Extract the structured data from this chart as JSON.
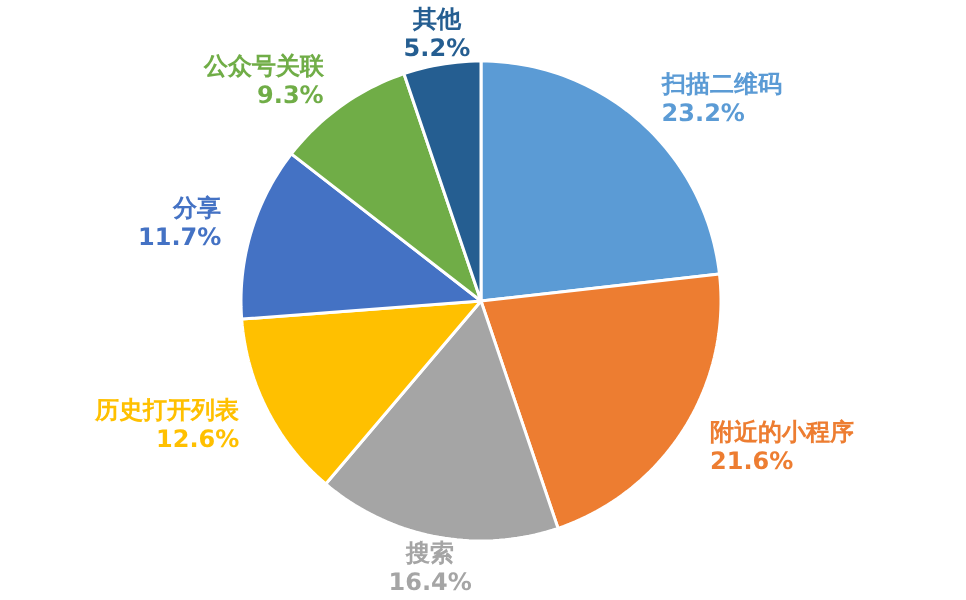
{
  "chart_data": {
    "type": "pie",
    "categories": [
      "扫描二维码",
      "附近的小程序",
      "搜索",
      "历史打开列表",
      "分享",
      "公众号关联",
      "其他"
    ],
    "values": [
      23.2,
      21.6,
      16.4,
      12.6,
      11.7,
      9.3,
      5.2
    ],
    "value_labels": [
      "23.2%",
      "21.6%",
      "16.4%",
      "12.6%",
      "11.7%",
      "9.3%",
      "5.2%"
    ],
    "colors": [
      "#5b9bd5",
      "#ed7d31",
      "#a5a5a5",
      "#ffc000",
      "#4472c4",
      "#70ad47",
      "#255e91"
    ]
  }
}
